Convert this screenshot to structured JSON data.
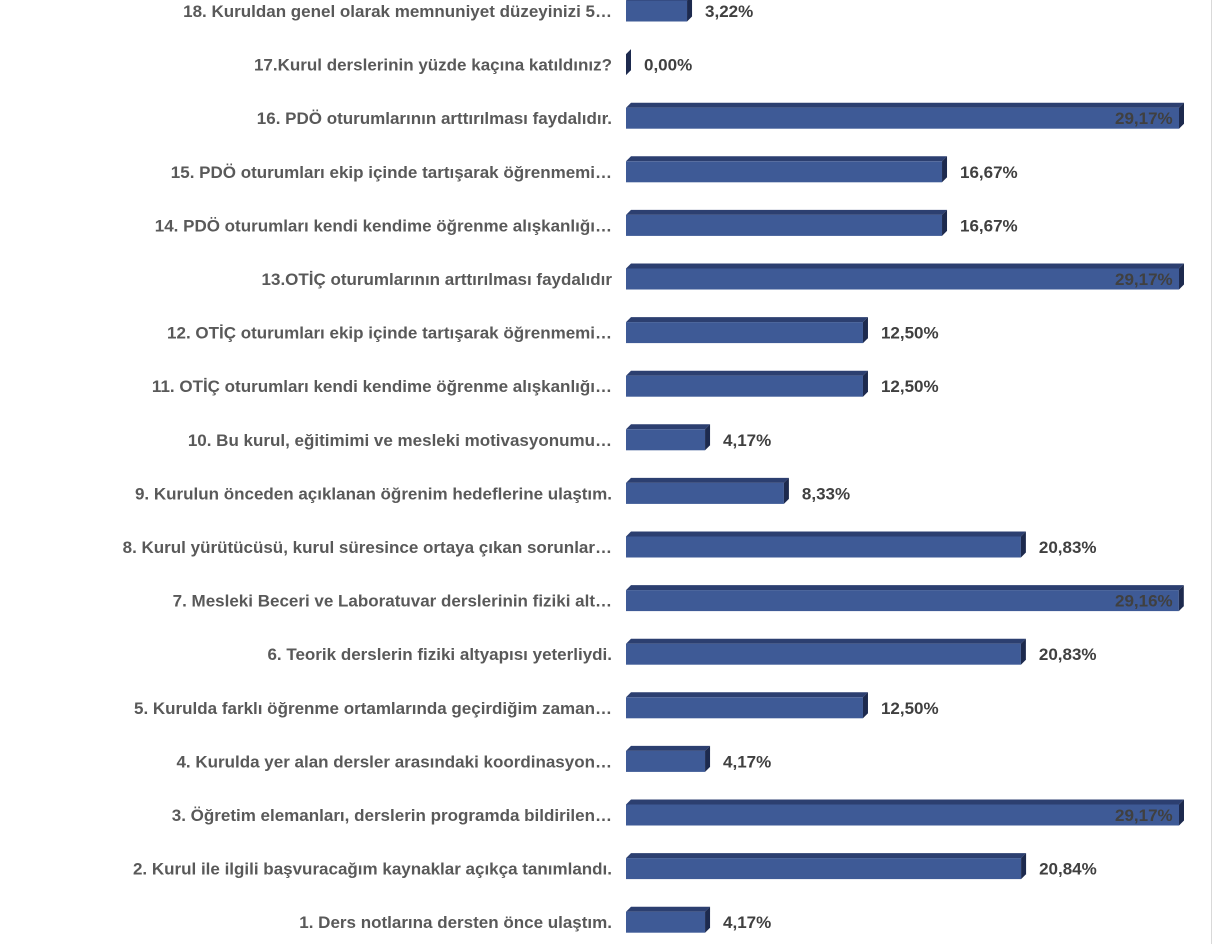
{
  "colors": {
    "bar_front": "#3e5a96",
    "bar_top": "#2c3f70",
    "bar_side": "#1d2a4e",
    "label": "#595959",
    "value": "#404040"
  },
  "chart_data": {
    "type": "bar",
    "orientation": "horizontal",
    "style": "3d",
    "categories": [
      "18. Kuruldan genel olarak memnuniyet düzeyinizi 5…",
      "17.Kurul derslerinin yüzde kaçına katıldınız?",
      "16. PDÖ oturumlarının arttırılması faydalıdır.",
      "15. PDÖ  oturumları ekip içinde tartışarak öğrenmemi…",
      "14. PDÖ oturumları kendi kendime öğrenme alışkanlığı…",
      "13.OTİÇ oturumlarının arttırılması faydalıdır",
      "12. OTİÇ  oturumları ekip içinde tartışarak öğrenmemi…",
      "11. OTİÇ oturumları kendi kendime öğrenme alışkanlığı…",
      "10. Bu kurul, eğitimimi ve mesleki motivasyonumu…",
      "9. Kurulun önceden açıklanan öğrenim hedeflerine ulaştım.",
      "8. Kurul yürütücüsü, kurul süresince ortaya çıkan sorunlar…",
      "7. Mesleki Beceri ve Laboratuvar derslerinin fiziki alt…",
      "6. Teorik derslerin fiziki altyapısı yeterliydi.",
      "5. Kurulda farklı öğrenme ortamlarında geçirdiğim zaman…",
      "4. Kurulda yer alan dersler arasındaki koordinasyon…",
      "3. Öğretim elemanları, derslerin programda bildirilen…",
      "2. Kurul ile ilgili başvuracağım kaynaklar açıkça tanımlandı.",
      "1. Ders notlarına dersten önce ulaştım."
    ],
    "values": [
      3.22,
      0.0,
      29.17,
      16.67,
      16.67,
      29.17,
      12.5,
      12.5,
      4.17,
      8.33,
      20.83,
      29.16,
      20.83,
      12.5,
      4.17,
      29.17,
      20.84,
      4.17
    ],
    "value_labels": [
      "3,22%",
      "0,00%",
      "29,17%",
      "16,67%",
      "16,67%",
      "29,17%",
      "12,50%",
      "12,50%",
      "4,17%",
      "8,33%",
      "20,83%",
      "29,16%",
      "20,83%",
      "12,50%",
      "4,17%",
      "29,17%",
      "20,84%",
      "4,17%"
    ],
    "xlim": [
      0,
      29.17
    ],
    "grid": false,
    "legend": "none"
  }
}
